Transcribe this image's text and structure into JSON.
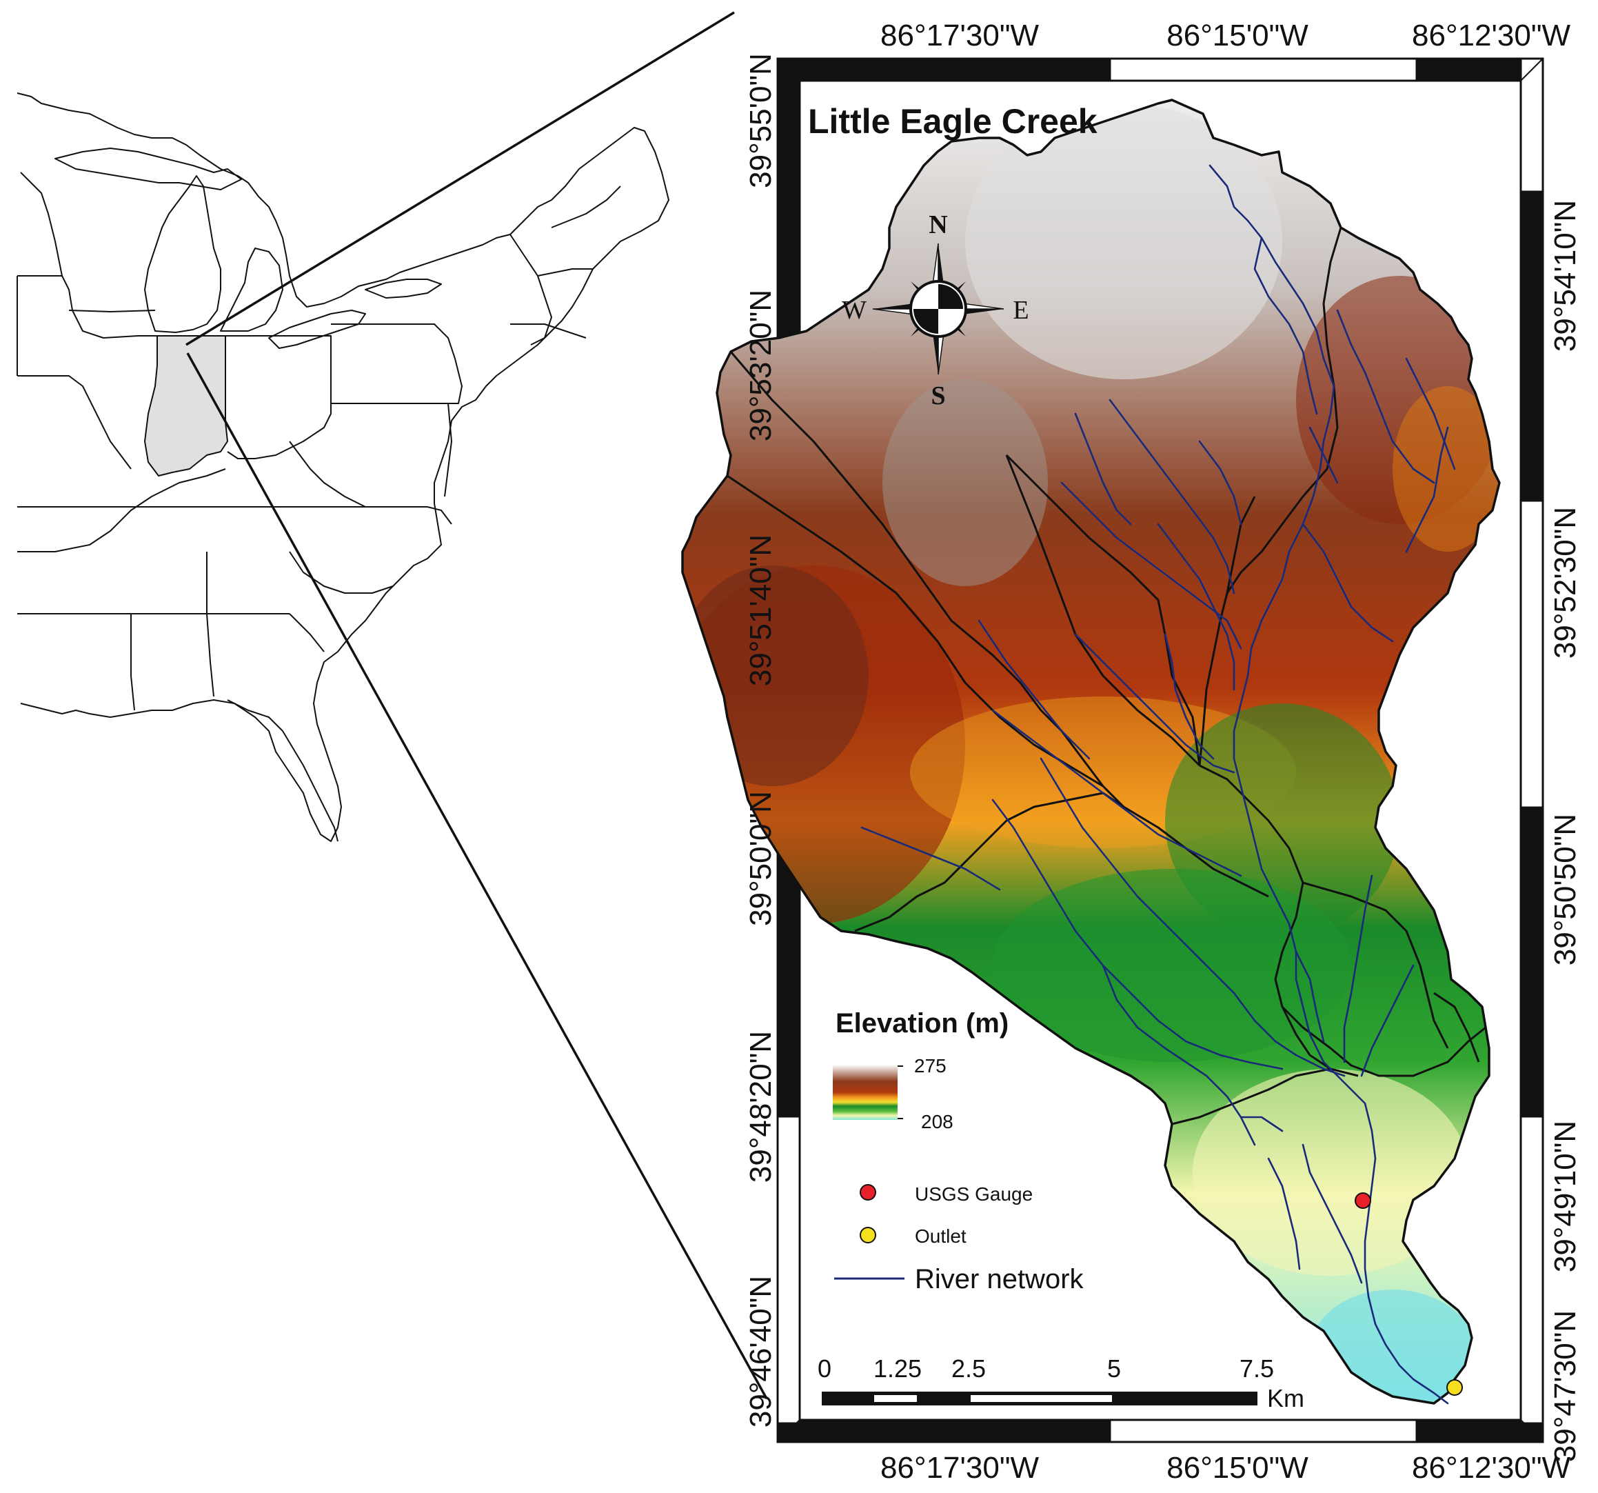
{
  "title": "Little Eagle Creek",
  "top_lon_labels": [
    "86°17'30\"W",
    "86°15'0\"W",
    "86°12'30\"W"
  ],
  "bottom_lon_labels": [
    "86°17'30\"W",
    "86°15'0\"W",
    "86°12'30\"W"
  ],
  "left_lat_labels": [
    "39°55'0\"N",
    "39°53'20\"N",
    "39°51'40\"N",
    "39°50'0\"N",
    "39°48'20\"N",
    "39°46'40\"N"
  ],
  "right_lat_labels": [
    "39°54'10\"N",
    "39°52'30\"N",
    "39°50'50\"N",
    "39°49'10\"N",
    "39°47'30\"N"
  ],
  "compass": {
    "n": "N",
    "s": "S",
    "e": "E",
    "w": "W"
  },
  "legend": {
    "elevation_title": "Elevation (m)",
    "elev_max": "275",
    "elev_min": "208",
    "gauge_label": "USGS Gauge",
    "outlet_label": "Outlet",
    "river_label": "River network"
  },
  "scale_bar": {
    "ticks": [
      "0",
      "1.25",
      "2.5",
      "5",
      "7.5"
    ],
    "unit": "Km"
  },
  "colors": {
    "high_elev": "#e8e8e8",
    "mid_high": "#8b3a1a",
    "mid": "#f0a020",
    "low_mid": "#1a9a2a",
    "low": "#f0f5b0",
    "lowest": "#80e0e0",
    "river": "#1a2a7a",
    "gauge": "#e8202a",
    "outlet": "#f5e020",
    "indiana_fill": "#e0e0e0"
  }
}
